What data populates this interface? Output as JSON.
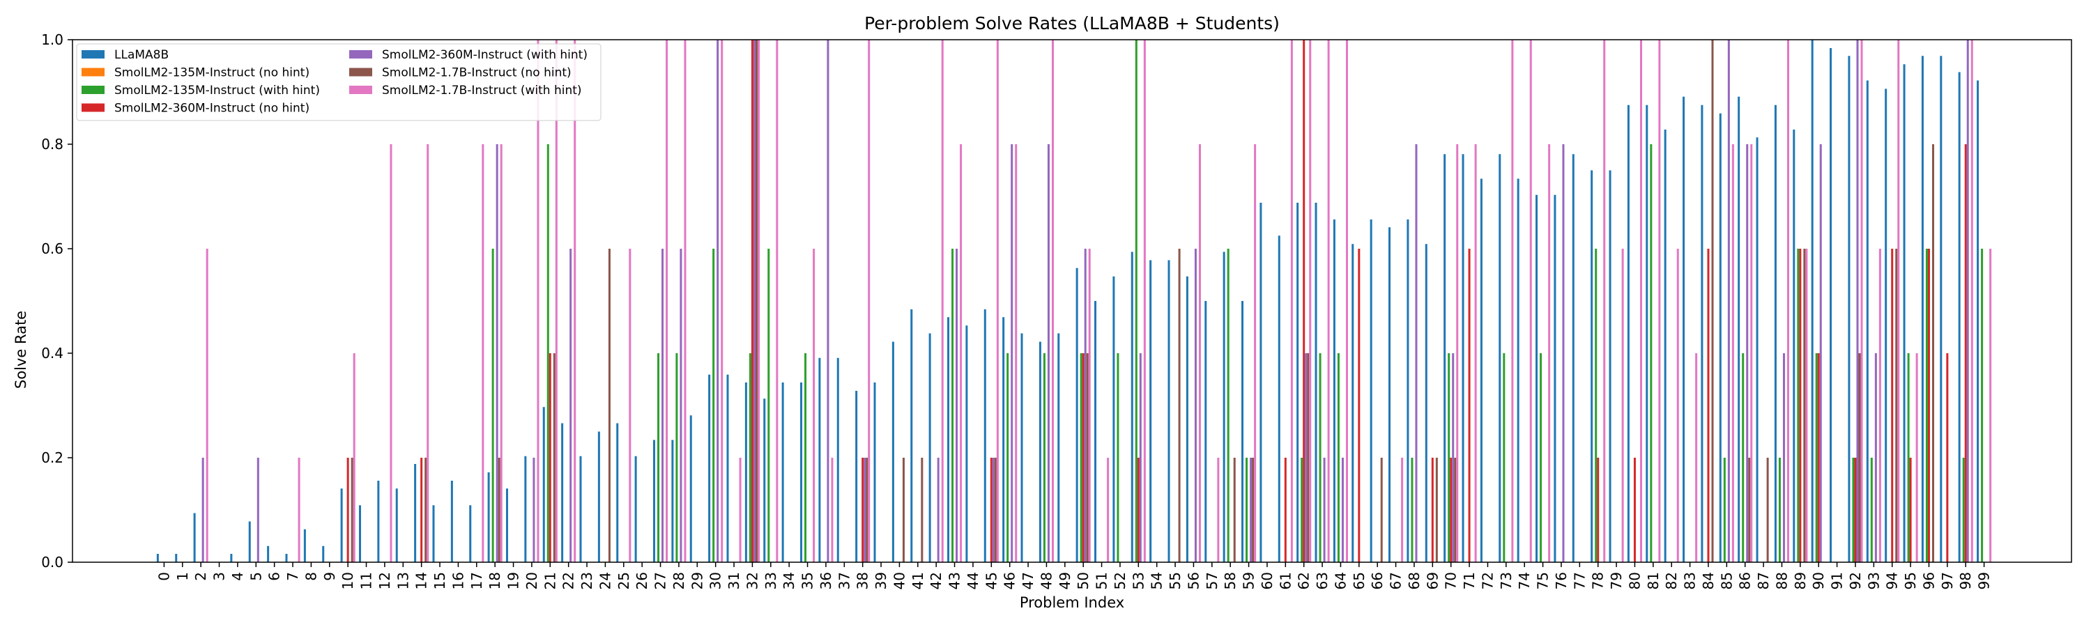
{
  "chart_data": {
    "type": "bar",
    "title": "Per-problem Solve Rates (LLaMA8B + Students)",
    "xlabel": "Problem Index",
    "ylabel": "Solve Rate",
    "ylim": [
      0,
      1.0
    ],
    "yticks": [
      0.0,
      0.2,
      0.4,
      0.6,
      0.8,
      1.0
    ],
    "grid": false,
    "legend_placement": "top-left",
    "categories": [
      "0",
      "1",
      "2",
      "3",
      "4",
      "5",
      "6",
      "7",
      "8",
      "9",
      "10",
      "11",
      "12",
      "13",
      "14",
      "15",
      "16",
      "17",
      "18",
      "19",
      "20",
      "21",
      "22",
      "23",
      "24",
      "25",
      "26",
      "27",
      "28",
      "29",
      "30",
      "31",
      "32",
      "33",
      "34",
      "35",
      "36",
      "37",
      "38",
      "39",
      "40",
      "41",
      "42",
      "43",
      "44",
      "45",
      "46",
      "47",
      "48",
      "49",
      "50",
      "51",
      "52",
      "53",
      "54",
      "55",
      "56",
      "57",
      "58",
      "59",
      "60",
      "61",
      "62",
      "63",
      "64",
      "65",
      "66",
      "67",
      "68",
      "69",
      "70",
      "71",
      "72",
      "73",
      "74",
      "75",
      "76",
      "77",
      "78",
      "79",
      "80",
      "81",
      "82",
      "83",
      "84",
      "85",
      "86",
      "87",
      "88",
      "89",
      "90",
      "91",
      "92",
      "93",
      "94",
      "95",
      "96",
      "97",
      "98",
      "99"
    ],
    "series": [
      {
        "name": "LLaMA8B",
        "color": "#1f77b4",
        "values": [
          0.016,
          0.016,
          0.094,
          0,
          0.016,
          0.078,
          0.031,
          0.016,
          0.063,
          0.031,
          0.141,
          0.109,
          0.156,
          0.141,
          0.188,
          0.109,
          0.156,
          0.109,
          0.172,
          0.141,
          0.203,
          0.297,
          0.266,
          0.203,
          0.25,
          0.266,
          0.203,
          0.234,
          0.234,
          0.281,
          0.359,
          0.359,
          0.344,
          0.313,
          0.344,
          0.344,
          0.391,
          0.391,
          0.328,
          0.344,
          0.422,
          0.484,
          0.438,
          0.469,
          0.453,
          0.484,
          0.469,
          0.438,
          0.422,
          0.438,
          0.563,
          0.5,
          0.547,
          0.594,
          0.578,
          0.578,
          0.547,
          0.5,
          0.594,
          0.5,
          0.688,
          0.625,
          0.688,
          0.688,
          0.656,
          0.609,
          0.656,
          0.641,
          0.656,
          0.609,
          0.781,
          0.781,
          0.734,
          0.781,
          0.734,
          0.703,
          0.703,
          0.781,
          0.75,
          0.75,
          0.875,
          0.875,
          0.828,
          0.891,
          0.875,
          0.859,
          0.891,
          0.813,
          0.875,
          0.828,
          1.0,
          0.984,
          0.969,
          0.922,
          0.906,
          0.953,
          0.969,
          0.969,
          0.938,
          0.922
        ]
      },
      {
        "name": "SmolLM2-135M-Instruct (no hint)",
        "color": "#ff7f0e",
        "values": [
          0,
          0,
          0,
          0,
          0,
          0,
          0,
          0,
          0,
          0,
          0,
          0,
          0,
          0,
          0,
          0,
          0,
          0,
          0,
          0,
          0,
          0,
          0,
          0,
          0,
          0,
          0,
          0,
          0,
          0,
          0,
          0,
          0,
          0,
          0,
          0,
          0,
          0,
          0,
          0,
          0,
          0,
          0,
          0,
          0,
          0,
          0,
          0,
          0,
          0,
          0,
          0,
          0,
          0,
          0,
          0,
          0,
          0,
          0,
          0,
          0,
          0,
          0,
          0,
          0,
          0,
          0,
          0,
          0,
          0,
          0,
          0,
          0,
          0,
          0,
          0,
          0,
          0,
          0,
          0,
          0,
          0,
          0,
          0,
          0,
          0,
          0,
          0,
          0,
          0,
          0,
          0,
          0,
          0,
          0,
          0,
          0,
          0,
          0,
          0
        ]
      },
      {
        "name": "SmolLM2-135M-Instruct (with hint)",
        "color": "#2ca02c",
        "values": [
          0,
          0,
          0,
          0,
          0,
          0,
          0,
          0,
          0,
          0,
          0,
          0,
          0,
          0,
          0,
          0,
          0,
          0,
          0.6,
          0,
          0,
          0.8,
          0,
          0,
          0,
          0,
          0,
          0.4,
          0.4,
          0,
          0.6,
          0,
          0.4,
          0.6,
          0,
          0.4,
          0,
          0,
          0,
          0,
          0,
          0,
          0,
          0.6,
          0,
          0,
          0.4,
          0,
          0.4,
          0,
          0.4,
          0,
          0.4,
          1.0,
          0,
          0,
          0,
          0,
          0.6,
          0.2,
          0,
          0,
          0.2,
          0.4,
          0.4,
          0,
          0,
          0,
          0.2,
          0,
          0.4,
          0,
          0,
          0.4,
          0,
          0.4,
          0,
          0,
          0.6,
          0,
          0,
          0.8,
          0,
          0,
          0,
          0.2,
          0.4,
          0,
          0.2,
          0.6,
          0.4,
          0,
          0.2,
          0.2,
          0,
          0.4,
          0.6,
          0,
          0.2,
          0.6
        ]
      },
      {
        "name": "SmolLM2-360M-Instruct (no hint)",
        "color": "#d62728",
        "values": [
          0,
          0,
          0,
          0,
          0,
          0,
          0,
          0,
          0,
          0,
          0.2,
          0,
          0,
          0,
          0.2,
          0,
          0,
          0,
          0,
          0,
          0,
          0.4,
          0,
          0,
          0,
          0,
          0,
          0,
          0,
          0,
          0,
          0,
          1.0,
          0,
          0,
          0,
          0,
          0,
          0.2,
          0,
          0,
          0,
          0,
          0,
          0,
          0.2,
          0,
          0,
          0,
          0,
          0.4,
          0,
          0,
          0.2,
          0,
          0,
          0,
          0,
          0,
          0,
          0,
          0.2,
          1.0,
          0,
          0,
          0.6,
          0,
          0,
          0,
          0.2,
          0.2,
          0.6,
          0,
          0,
          0,
          0,
          0,
          0,
          0.2,
          0,
          0.2,
          0,
          0,
          0,
          0.6,
          0,
          0,
          0,
          0,
          0.6,
          0.4,
          0,
          0.2,
          0,
          0.6,
          0.2,
          0.6,
          0.4,
          0.8,
          0
        ]
      },
      {
        "name": "SmolLM2-360M-Instruct (with hint)",
        "color": "#9467bd",
        "values": [
          0,
          0,
          0.2,
          0,
          0,
          0.2,
          0,
          0,
          0,
          0,
          0,
          0,
          0,
          0,
          0,
          0,
          0,
          0,
          0.8,
          0,
          0.2,
          0,
          0.6,
          0,
          0,
          0,
          0,
          0.6,
          0.6,
          0,
          1.0,
          0,
          1.0,
          0,
          0,
          0,
          1.0,
          0,
          0.2,
          0,
          0,
          0,
          0.2,
          0.6,
          0,
          0.2,
          0.8,
          0,
          0.8,
          0,
          0.6,
          0,
          0,
          0.4,
          0,
          0,
          0.6,
          0,
          0,
          0.2,
          0,
          0,
          0.4,
          0.2,
          0.2,
          0,
          0,
          0,
          0.8,
          0,
          0.4,
          0,
          0,
          0,
          0,
          0,
          0.8,
          0,
          0,
          0,
          0,
          0,
          0,
          0,
          0,
          1.0,
          0.8,
          0,
          0.4,
          0,
          0.8,
          0,
          1.0,
          0.4,
          0,
          0,
          0,
          0,
          1.0,
          0
        ]
      },
      {
        "name": "SmolLM2-1.7B-Instruct (no hint)",
        "color": "#8c564b",
        "values": [
          0,
          0,
          0,
          0,
          0,
          0,
          0,
          0,
          0,
          0,
          0.2,
          0,
          0,
          0,
          0.2,
          0,
          0,
          0,
          0.2,
          0,
          0,
          0.4,
          0,
          0,
          0.6,
          0,
          0,
          0,
          0,
          0,
          0,
          0,
          1.0,
          0,
          0,
          0,
          0,
          0,
          0.2,
          0,
          0.2,
          0.2,
          0,
          0,
          0,
          0.2,
          0,
          0,
          0,
          0,
          0.4,
          0,
          0,
          0,
          0,
          0.6,
          0,
          0,
          0.2,
          0.2,
          0,
          0,
          0.4,
          0,
          0,
          0,
          0.2,
          0,
          0,
          0.2,
          0.2,
          0,
          0,
          0,
          0,
          0,
          0,
          0,
          0,
          0,
          0,
          0,
          0,
          0,
          1.0,
          0,
          0.2,
          0.2,
          0,
          0.6,
          0,
          0,
          0.4,
          0,
          0.6,
          0,
          0.8,
          0,
          0,
          0
        ]
      },
      {
        "name": "SmolLM2-1.7B-Instruct (with hint)",
        "color": "#e377c2",
        "values": [
          0,
          0,
          0.6,
          0,
          0,
          0,
          0,
          0.2,
          0,
          0,
          0.4,
          0,
          0.8,
          0,
          0.8,
          0,
          0,
          0.8,
          0.8,
          0,
          1.0,
          1.0,
          1.0,
          0,
          0,
          0.6,
          0,
          1.0,
          1.0,
          0,
          1.0,
          0.2,
          1.0,
          1.0,
          0,
          0.6,
          0.2,
          0,
          1.0,
          0,
          0,
          0,
          1.0,
          0.8,
          0,
          1.0,
          0.8,
          0,
          1.0,
          0,
          0.6,
          0.2,
          0,
          1.0,
          0,
          0,
          0.8,
          0.2,
          0,
          0.8,
          0,
          1.0,
          1.0,
          1.0,
          1.0,
          0,
          0,
          0.2,
          0,
          0,
          0.8,
          0.8,
          0,
          1.0,
          1.0,
          0.8,
          0,
          0,
          1.0,
          0.6,
          1.0,
          1.0,
          0.6,
          0.4,
          0,
          0.8,
          0.8,
          0,
          1.0,
          0.6,
          0,
          0,
          1.0,
          0.6,
          1.0,
          0.4,
          0,
          0,
          1.0,
          0.6
        ]
      }
    ]
  }
}
